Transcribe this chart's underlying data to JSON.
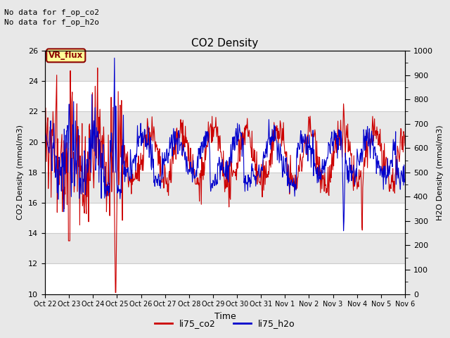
{
  "title": "CO2 Density",
  "xlabel": "Time",
  "ylabel_left": "CO2 Density (mmol/m3)",
  "ylabel_right": "H2O Density (mmol/m3)",
  "ylim_left": [
    10,
    26
  ],
  "ylim_right": [
    0,
    1000
  ],
  "yticks_left": [
    10,
    12,
    14,
    16,
    18,
    20,
    22,
    24,
    26
  ],
  "yticks_right": [
    0,
    100,
    200,
    300,
    400,
    500,
    600,
    700,
    800,
    900,
    1000
  ],
  "xtick_labels": [
    "Oct 22",
    "Oct 23",
    "Oct 24",
    "Oct 25",
    "Oct 26",
    "Oct 27",
    "Oct 28",
    "Oct 29",
    "Oct 30",
    "Oct 31",
    "Nov 1",
    "Nov 2",
    "Nov 3",
    "Nov 4",
    "Nov 5",
    "Nov 6"
  ],
  "text_no_data_co2": "No data for f_op_co2",
  "text_no_data_h2o": "No data for f_op_h2o",
  "vr_flux_label": "VR_flux",
  "legend_co2": "li75_co2",
  "legend_h2o": "li75_h2o",
  "color_co2": "#cc0000",
  "color_h2o": "#0000cc",
  "background_color": "#e8e8e8",
  "plot_bg_color": "#f0f0f0",
  "band_light": "#e8e8e8",
  "band_dark": "#f8f8f8",
  "seed": 42
}
